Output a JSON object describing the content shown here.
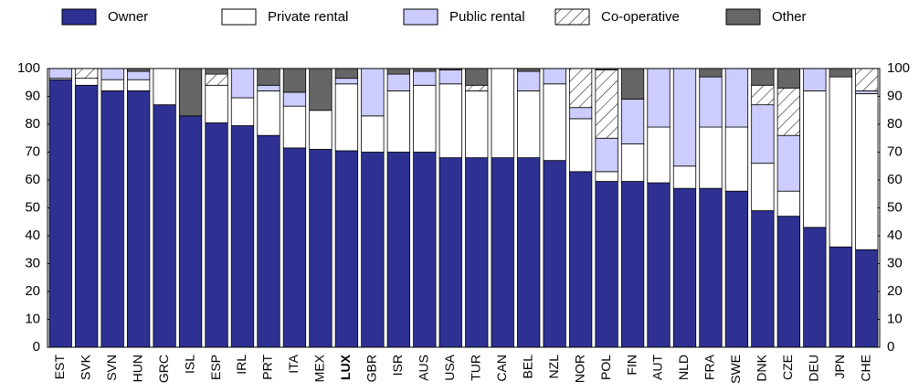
{
  "chart_data": {
    "type": "stacked_bar",
    "categories": [
      "EST",
      "SVK",
      "SVN",
      "HUN",
      "GRC",
      "ISL",
      "ESP",
      "IRL",
      "PRT",
      "ITA",
      "MEX",
      "LUX",
      "GBR",
      "ISR",
      "AUS",
      "USA",
      "TUR",
      "CAN",
      "BEL",
      "NZL",
      "NOR",
      "POL",
      "FIN",
      "AUT",
      "NLD",
      "FRA",
      "SWE",
      "DNK",
      "CZE",
      "DEU",
      "JPN",
      "CHE"
    ],
    "highlight": "LUX",
    "series": [
      {
        "name": "Owner",
        "color": "#2e3192",
        "values": [
          96,
          94,
          92,
          92,
          87,
          83,
          80.5,
          79.5,
          76,
          71.5,
          71,
          70.5,
          70,
          70,
          70,
          68,
          68,
          68,
          68,
          67,
          63,
          59.5,
          59.5,
          59,
          57,
          57,
          56,
          49,
          47,
          43,
          36,
          35
        ]
      },
      {
        "name": "Private rental",
        "color": "#ffffff",
        "values": [
          0.5,
          2.5,
          4,
          4,
          13,
          0,
          13.5,
          10,
          16,
          15,
          14,
          24,
          13,
          22,
          24,
          26.5,
          24,
          32,
          24,
          27.5,
          19,
          3.5,
          13.5,
          20,
          8,
          22,
          23,
          17,
          9,
          49,
          61,
          56
        ]
      },
      {
        "name": "Public rental",
        "color": "#ccccff",
        "values": [
          3.5,
          0,
          4,
          3,
          0,
          0,
          0,
          10.5,
          2,
          5,
          0,
          2,
          17,
          6,
          5,
          5,
          0,
          0,
          7,
          5.5,
          4,
          12,
          16,
          21,
          35,
          18,
          21,
          21,
          20,
          8,
          0,
          1
        ]
      },
      {
        "name": "Co-operative",
        "color": "#ffffff",
        "pattern": "hatch",
        "values": [
          0,
          3.5,
          0,
          0,
          0,
          0,
          4,
          0,
          0,
          0,
          0,
          0,
          0,
          0,
          0,
          0,
          2,
          0,
          0,
          0,
          14,
          24.5,
          0,
          0,
          0,
          0,
          0,
          7,
          17,
          0,
          0,
          8
        ]
      },
      {
        "name": "Other",
        "color": "#666666",
        "values": [
          0,
          0,
          0,
          1,
          0,
          17,
          2,
          0,
          6,
          8.5,
          15,
          3.5,
          0,
          2,
          1,
          0.5,
          6,
          0,
          1,
          0,
          0,
          0.5,
          11,
          0,
          0,
          3,
          0,
          6,
          7,
          0,
          3,
          0
        ]
      }
    ],
    "ylim": [
      0,
      100
    ],
    "yticks": [
      0,
      10,
      20,
      30,
      40,
      50,
      60,
      70,
      80,
      90,
      100
    ],
    "mirror_yaxis": true,
    "legend": "top"
  }
}
